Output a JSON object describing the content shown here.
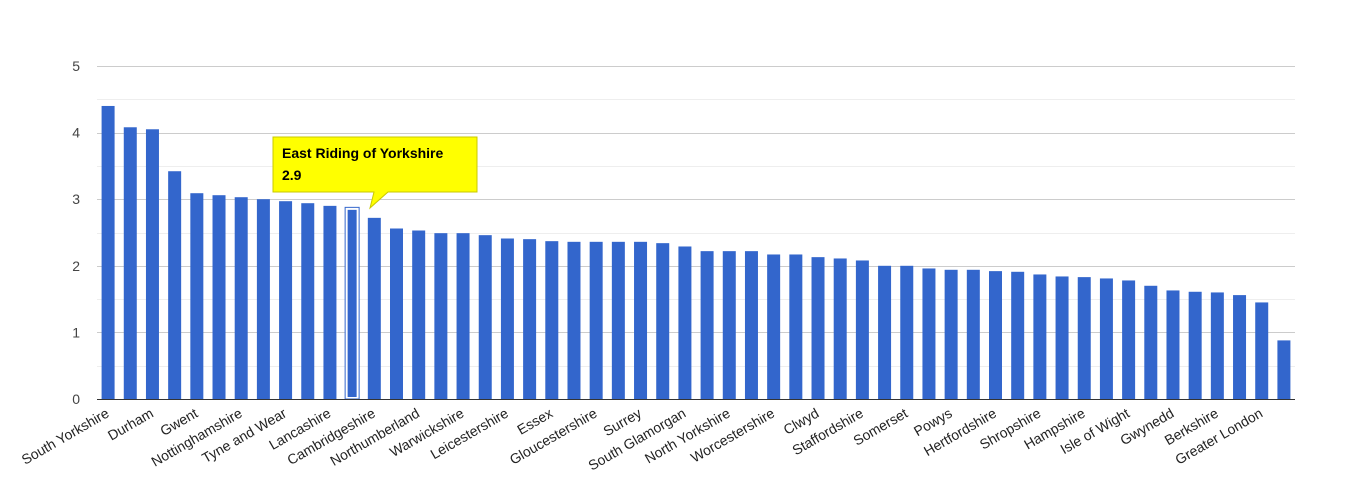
{
  "chart_data": {
    "type": "bar",
    "categories": [
      "South Yorkshire",
      "",
      "Durham",
      "",
      "Gwent",
      "",
      "Nottinghamshire",
      "",
      "Tyne and Wear",
      "",
      "Lancashire",
      "",
      "Cambridgeshire",
      "",
      "Northumberland",
      "",
      "Warwickshire",
      "",
      "Leicestershire",
      "",
      "Essex",
      "",
      "Gloucestershire",
      "",
      "Surrey",
      "",
      "South Glamorgan",
      "",
      "North Yorkshire",
      "",
      "Worcestershire",
      "",
      "Clwyd",
      "",
      "Staffordshire",
      "",
      "Somerset",
      "",
      "Powys",
      "",
      "Hertfordshire",
      "",
      "Shropshire",
      "",
      "Hampshire",
      "",
      "Isle of Wight",
      "",
      "Gwynedd",
      "",
      "Berkshire",
      "",
      "Greater London",
      ""
    ],
    "values": [
      4.4,
      4.08,
      4.05,
      3.42,
      3.09,
      3.06,
      3.03,
      3.0,
      2.97,
      2.94,
      2.9,
      2.87,
      2.72,
      2.56,
      2.53,
      2.49,
      2.49,
      2.46,
      2.41,
      2.4,
      2.37,
      2.36,
      2.36,
      2.36,
      2.36,
      2.34,
      2.29,
      2.22,
      2.22,
      2.22,
      2.17,
      2.17,
      2.13,
      2.11,
      2.08,
      2.0,
      2.0,
      1.96,
      1.94,
      1.94,
      1.92,
      1.91,
      1.87,
      1.84,
      1.83,
      1.81,
      1.78,
      1.7,
      1.63,
      1.61,
      1.6,
      1.56,
      1.45,
      0.88
    ],
    "ylim": [
      0,
      5
    ],
    "yticks": [
      0,
      1,
      2,
      3,
      4,
      5
    ],
    "grid": true,
    "highlight_index": 11,
    "bar_color": "#3366cc",
    "tooltip": {
      "title": "East Riding of Yorkshire",
      "value": "2.9",
      "background": "#ffff00"
    }
  }
}
